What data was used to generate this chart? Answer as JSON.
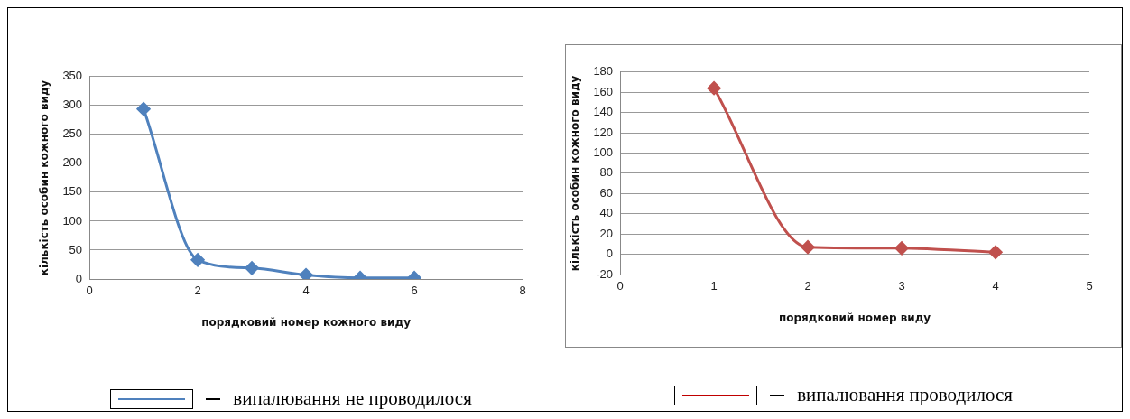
{
  "chart_data": [
    {
      "type": "line",
      "xlabel": "порядковий номер кожного виду",
      "ylabel": "кількість особин кожного виду",
      "x": [
        1,
        2,
        3,
        4,
        5,
        6
      ],
      "series": [
        {
          "name": "випалювання не проводилося",
          "color": "#4f81bd",
          "values": [
            294,
            33,
            19,
            7,
            2,
            2
          ]
        }
      ],
      "xlim": [
        0,
        8
      ],
      "xticks": [
        0,
        2,
        4,
        6,
        8
      ],
      "ylim": [
        0,
        350
      ],
      "yticks": [
        0,
        50,
        100,
        150,
        200,
        250,
        300,
        350
      ],
      "grid": "y",
      "marker": "diamond",
      "legend": "bottom"
    },
    {
      "type": "line",
      "xlabel": "порядковий номер виду",
      "ylabel": "кількість особин кожного виду",
      "x": [
        1,
        2,
        3,
        4
      ],
      "series": [
        {
          "name": "випалювання проводилося",
          "color": "#c0504d",
          "values": [
            164,
            7,
            6,
            2
          ]
        }
      ],
      "xlim": [
        0,
        5
      ],
      "xticks": [
        0,
        1,
        2,
        3,
        4,
        5
      ],
      "ylim": [
        -20,
        180
      ],
      "yticks": [
        -20,
        0,
        20,
        40,
        60,
        80,
        100,
        120,
        140,
        160,
        180
      ],
      "grid": "y",
      "marker": "diamond",
      "legend": "bottom"
    }
  ]
}
